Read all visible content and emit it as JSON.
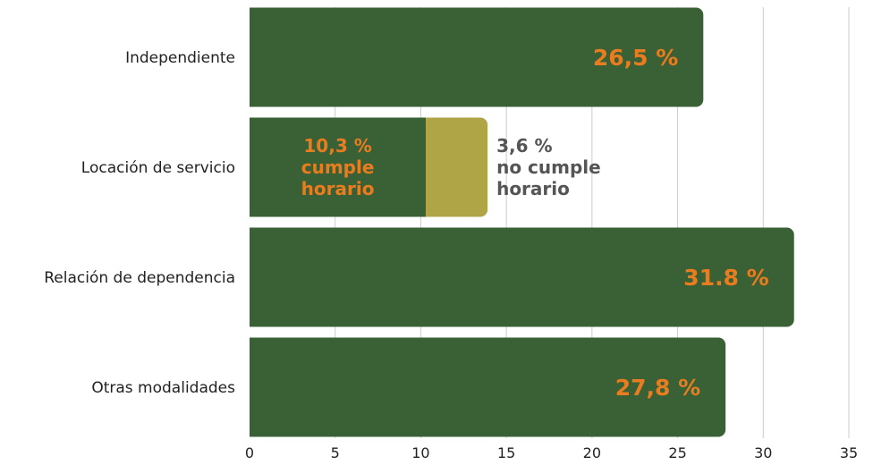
{
  "chart_data": {
    "type": "bar",
    "orientation": "horizontal",
    "stacked": true,
    "categories": [
      "Independiente",
      "Locación de servicio",
      "Relación de dependencia",
      "Otras modalidades"
    ],
    "series": [
      {
        "name": "cumple horario",
        "values": [
          26.5,
          10.3,
          31.8,
          27.8
        ],
        "color": "#3a6135"
      },
      {
        "name": "no cumple horario",
        "values": [
          0,
          3.6,
          0,
          0
        ],
        "color": "#b0a546"
      }
    ],
    "data_labels": [
      [
        "26,5 %"
      ],
      [
        "10,3 %",
        "cumple",
        "horario"
      ],
      [
        "31.8 %"
      ],
      [
        "27,8 %"
      ]
    ],
    "secondary_label": [
      "3,6 %",
      "no cumple",
      "horario"
    ],
    "xlim": [
      0,
      35
    ],
    "xticks": [
      "0",
      "5",
      "10",
      "15",
      "20",
      "25",
      "30",
      "35"
    ],
    "grid": true,
    "colors": {
      "bar": "#3a6135",
      "secondary_bar": "#b0a546",
      "label_accent": "#e87c1e",
      "label_muted": "#555555",
      "grid": "#cccccc"
    }
  }
}
